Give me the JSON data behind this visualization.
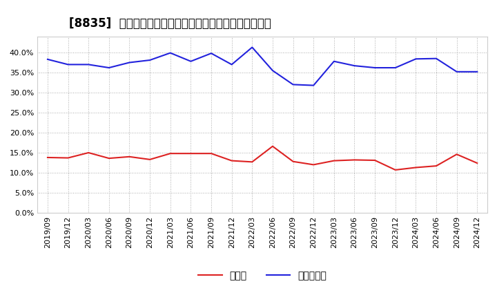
{
  "title": "[8835]  現頃金、有利子負債の総資産に対する比率の推移",
  "ylim": [
    0.0,
    0.44
  ],
  "yticks": [
    0.0,
    0.05,
    0.1,
    0.15,
    0.2,
    0.25,
    0.3,
    0.35,
    0.4
  ],
  "dates": [
    "2019/09",
    "2019/12",
    "2020/03",
    "2020/06",
    "2020/09",
    "2020/12",
    "2021/03",
    "2021/06",
    "2021/09",
    "2021/12",
    "2022/03",
    "2022/06",
    "2022/09",
    "2022/12",
    "2023/03",
    "2023/06",
    "2023/09",
    "2023/12",
    "2024/03",
    "2024/06",
    "2024/09",
    "2024/12"
  ],
  "cash": [
    0.138,
    0.137,
    0.15,
    0.136,
    0.14,
    0.133,
    0.148,
    0.148,
    0.148,
    0.13,
    0.127,
    0.166,
    0.128,
    0.12,
    0.13,
    0.132,
    0.131,
    0.107,
    0.113,
    0.117,
    0.146,
    0.124
  ],
  "debt": [
    0.383,
    0.37,
    0.37,
    0.362,
    0.375,
    0.381,
    0.399,
    0.378,
    0.398,
    0.37,
    0.413,
    0.355,
    0.32,
    0.318,
    0.378,
    0.367,
    0.362,
    0.362,
    0.384,
    0.385,
    0.352,
    0.352
  ],
  "cash_color": "#dd2222",
  "debt_color": "#2222dd",
  "bg_color": "#ffffff",
  "plot_bg_color": "#ffffff",
  "grid_color": "#aaaaaa",
  "legend_cash": "現頃金",
  "legend_debt": "有利子負債",
  "title_fontsize": 12,
  "tick_fontsize": 8,
  "legend_fontsize": 10
}
